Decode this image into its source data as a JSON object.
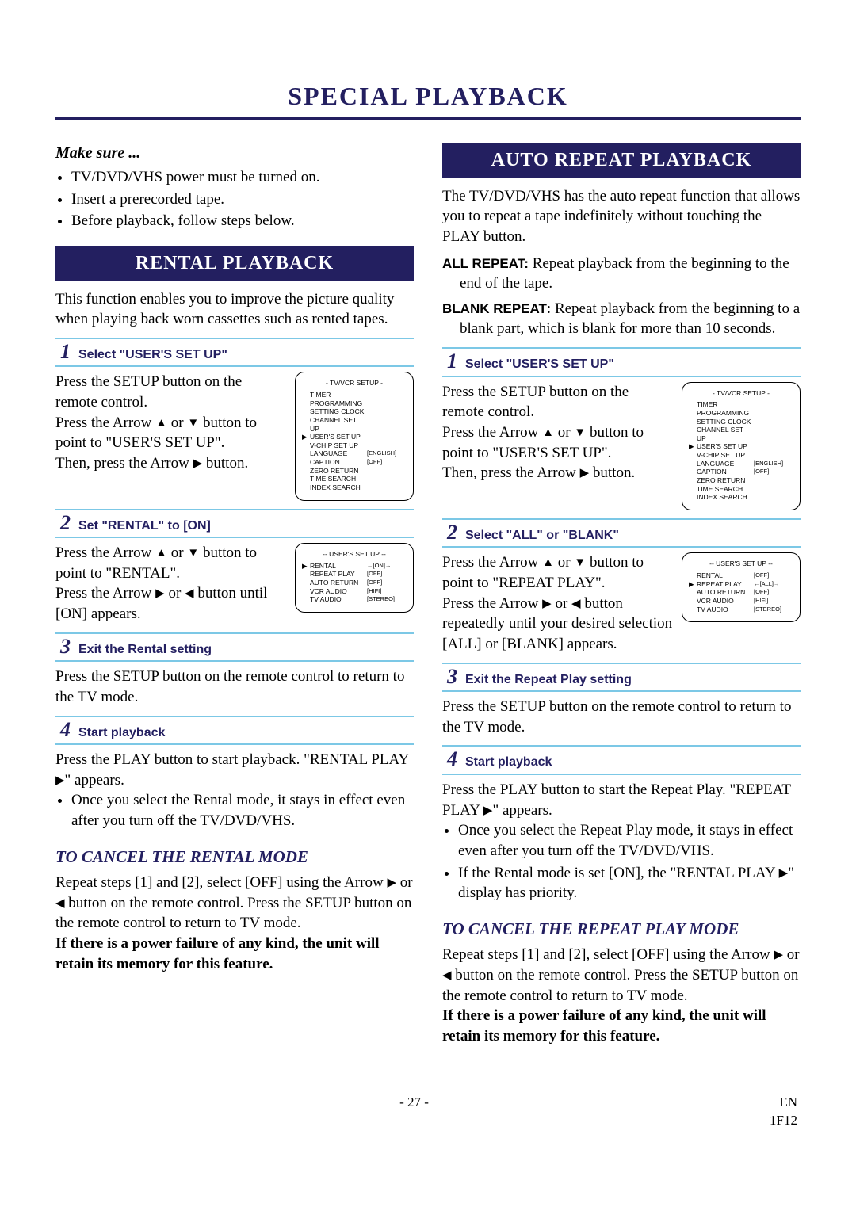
{
  "page": {
    "title": "SPECIAL PLAYBACK",
    "footer_page": "- 27 -",
    "footer_lang": "EN",
    "footer_code": "1F12"
  },
  "makesure": {
    "heading": "Make sure ...",
    "items": [
      "TV/DVD/VHS power must be turned on.",
      "Insert a prerecorded tape.",
      "Before playback, follow steps below."
    ]
  },
  "rental": {
    "banner": "RENTAL PLAYBACK",
    "intro": "This function enables you to improve the picture quality when playing back worn cassettes such as rented tapes.",
    "step1": {
      "label": "Select \"USER'S SET UP\"",
      "l1": "Press the SETUP button on the remote control.",
      "l2a": "Press the Arrow ",
      "l2b": " or ",
      "l2c": " button to point to \"USER'S SET UP\".",
      "l3a": "Then, press the Arrow ",
      "l3b": " button."
    },
    "step2": {
      "label": "Set \"RENTAL\" to [ON]",
      "l1a": "Press the Arrow ",
      "l1b": " or ",
      "l1c": " button to point to \"RENTAL\".",
      "l2a": "Press the Arrow ",
      "l2b": " or ",
      "l2c": " button until [ON] appears."
    },
    "step3": {
      "label": "Exit the Rental setting",
      "body": "Press the SETUP button on the remote control to return to the TV mode."
    },
    "step4": {
      "label": "Start playback",
      "l1a": "Press the PLAY button to start playback. \"RENTAL PLAY ",
      "l1b": "\" appears.",
      "bullet": "Once you select the Rental mode, it stays in effect even after you turn off the TV/DVD/VHS."
    },
    "cancel": {
      "heading": "TO CANCEL THE RENTAL MODE",
      "l1a": "Repeat steps [1] and [2], select [OFF] using the Arrow ",
      "l1b": " or ",
      "l1c": " button on the remote control. Press the SETUP button on the remote control to return to TV mode.",
      "note": "If there is a power failure of any kind, the unit will retain its memory for this feature."
    }
  },
  "auto": {
    "banner": "AUTO REPEAT PLAYBACK",
    "intro": "The TV/DVD/VHS has the auto repeat function that allows you to repeat a tape indefinitely without touching the PLAY button.",
    "all_label": "ALL REPEAT:",
    "all_text": " Repeat playback from the beginning to the end of the tape.",
    "blank_label": "BLANK REPEAT",
    "blank_text": ": Repeat playback from the beginning to a blank part, which is blank for more than 10 seconds.",
    "step1": {
      "label": "Select \"USER'S SET UP\"",
      "l1": "Press the SETUP button on the remote control.",
      "l2a": "Press the Arrow ",
      "l2b": " or ",
      "l2c": " button to point to \"USER'S SET UP\".",
      "l3a": "Then, press the Arrow ",
      "l3b": " button."
    },
    "step2": {
      "label": "Select \"ALL\" or \"BLANK\"",
      "l1a": "Press the Arrow ",
      "l1b": " or ",
      "l1c": " button to point to \"REPEAT PLAY\".",
      "l2a": "Press the Arrow ",
      "l2b": " or ",
      "l2c": " button repeatedly until your desired selection [ALL] or [BLANK] appears."
    },
    "step3": {
      "label": "Exit the Repeat Play setting",
      "body": "Press the SETUP button on the remote control to return to the TV mode."
    },
    "step4": {
      "label": "Start playback",
      "l1a": "Press the PLAY button to start the Repeat Play. \"REPEAT PLAY ",
      "l1b": "\" appears.",
      "b1": "Once you select the Repeat Play mode, it stays in effect even after you turn off the TV/DVD/VHS.",
      "b2a": "If the Rental mode is set [ON], the \"RENTAL PLAY ",
      "b2b": "\" display has priority."
    },
    "cancel": {
      "heading": "TO CANCEL THE REPEAT PLAY MODE",
      "l1a": "Repeat steps [1] and [2], select [OFF] using the Arrow ",
      "l1b": " or ",
      "l1c": " button on the remote control. Press the SETUP button on the remote control to return to TV mode.",
      "note": "If there is a power failure of any kind, the unit will retain its memory for this feature."
    }
  },
  "osd_setup": {
    "title": "- TV/VCR SETUP -",
    "lines": [
      {
        "ptr": "",
        "name": "TIMER PROGRAMMING",
        "val": ""
      },
      {
        "ptr": "",
        "name": "SETTING CLOCK",
        "val": ""
      },
      {
        "ptr": "",
        "name": "CHANNEL SET UP",
        "val": ""
      },
      {
        "ptr": "▶",
        "name": "USER'S SET UP",
        "val": ""
      },
      {
        "ptr": "",
        "name": "V-CHIP SET UP",
        "val": ""
      },
      {
        "ptr": "",
        "name": "LANGUAGE",
        "val": "[ENGLISH]"
      },
      {
        "ptr": "",
        "name": "CAPTION",
        "val": "[OFF]"
      },
      {
        "ptr": "",
        "name": "ZERO RETURN",
        "val": ""
      },
      {
        "ptr": "",
        "name": "TIME SEARCH",
        "val": ""
      },
      {
        "ptr": "",
        "name": "INDEX SEARCH",
        "val": ""
      }
    ]
  },
  "osd_user_rental": {
    "title": "-- USER'S SET UP --",
    "lines": [
      {
        "ptr": "▶",
        "name": "RENTAL",
        "val": "←[ON]→"
      },
      {
        "ptr": "",
        "name": "REPEAT PLAY",
        "val": "[OFF]"
      },
      {
        "ptr": "",
        "name": "AUTO RETURN",
        "val": "[OFF]"
      },
      {
        "ptr": "",
        "name": "VCR AUDIO",
        "val": "[HIFI]"
      },
      {
        "ptr": "",
        "name": "TV AUDIO",
        "val": "[STEREO]"
      }
    ]
  },
  "osd_user_repeat": {
    "title": "-- USER'S SET UP --",
    "lines": [
      {
        "ptr": "",
        "name": "RENTAL",
        "val": "[OFF]"
      },
      {
        "ptr": "▶",
        "name": "REPEAT PLAY",
        "val": "←[ALL]→"
      },
      {
        "ptr": "",
        "name": "AUTO RETURN",
        "val": "[OFF]"
      },
      {
        "ptr": "",
        "name": "VCR AUDIO",
        "val": "[HIFI]"
      },
      {
        "ptr": "",
        "name": "TV AUDIO",
        "val": "[STEREO]"
      }
    ]
  },
  "glyph": {
    "up": "▲",
    "down": "▼",
    "right": "▶",
    "left": "◀"
  }
}
